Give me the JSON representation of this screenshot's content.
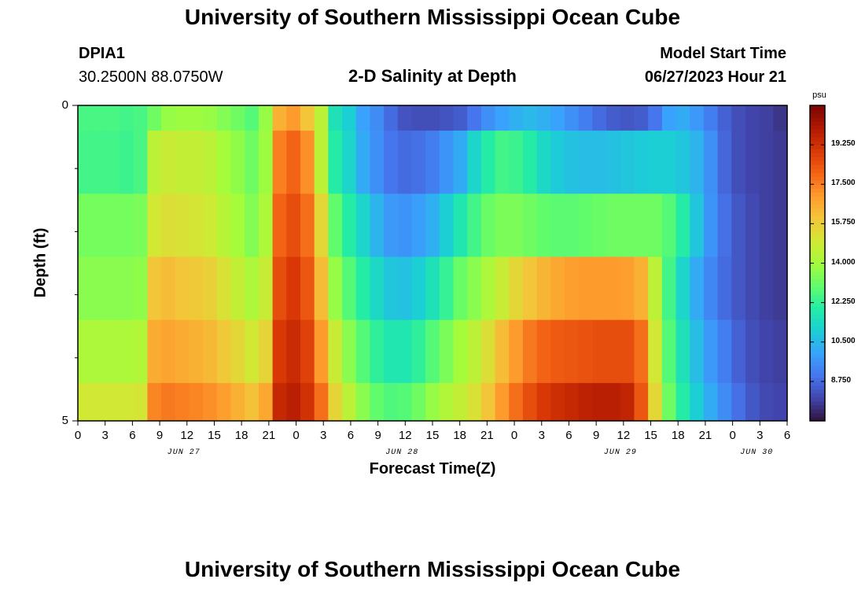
{
  "header": {
    "title": "University of Southern Mississippi Ocean Cube",
    "station_id": "DPIA1",
    "station_coords": "30.2500N  88.0750W",
    "chart_title": "2-D Salinity at Depth",
    "model_start_label": "Model Start Time",
    "model_start_value": "06/27/2023 Hour 21"
  },
  "footer": {
    "title": "University of Southern Mississippi Ocean Cube"
  },
  "chart_data": {
    "type": "heatmap",
    "title": "2-D Salinity at Depth",
    "xlabel": "Forecast Time(Z)",
    "ylabel": "Depth (ft)",
    "ylim": [
      0,
      5
    ],
    "y_tick_labels": [
      "0",
      "5"
    ],
    "x_tick_labels": [
      "0",
      "3",
      "6",
      "9",
      "12",
      "15",
      "18",
      "21",
      "0",
      "3",
      "6",
      "9",
      "12",
      "15",
      "18",
      "21",
      "0",
      "3",
      "6",
      "9",
      "12",
      "15",
      "18",
      "21",
      "0",
      "3",
      "6"
    ],
    "day_labels": [
      "JUN 27",
      "JUN 28",
      "JUN 29",
      "JUN 30"
    ],
    "x_hours": [
      0,
      3,
      6,
      9,
      12,
      15,
      18,
      21,
      24,
      27,
      30,
      33,
      36,
      39,
      42,
      45,
      48,
      51,
      54,
      57,
      60,
      63,
      66,
      69,
      72,
      75,
      78
    ],
    "depth_bins_ft": [
      "0.0-0.4",
      "0.4-1.4",
      "1.4-2.4",
      "2.4-3.4",
      "3.4-4.4",
      "4.4-5.0"
    ],
    "values": [
      [
        12.6,
        12.6,
        12.6,
        12.5,
        12.6,
        13.2,
        13.8,
        13.9,
        13.9,
        13.8,
        13.5,
        13.2,
        12.8,
        13.8,
        16.5,
        17.0,
        16.0,
        14.5,
        11.6,
        11.0,
        10.0,
        9.5,
        8.8,
        8.3,
        8.2,
        8.2,
        8.3,
        8.5,
        9.0,
        9.6,
        10.0,
        10.3,
        10.5,
        10.3,
        10.0,
        9.6,
        9.2,
        8.8,
        8.5,
        8.4,
        8.5,
        9.0,
        10.0,
        10.2,
        9.8,
        9.2,
        8.6,
        8.2,
        8.0,
        7.9,
        7.7
      ],
      [
        12.5,
        12.5,
        12.5,
        12.4,
        12.6,
        14.5,
        14.8,
        14.7,
        14.7,
        14.5,
        14.0,
        13.7,
        13.2,
        13.9,
        17.5,
        18.0,
        17.2,
        14.5,
        12.0,
        11.2,
        10.2,
        9.6,
        9.0,
        8.8,
        8.9,
        9.2,
        9.7,
        10.2,
        11.2,
        12.0,
        12.5,
        12.4,
        12.0,
        11.3,
        10.9,
        10.7,
        10.6,
        10.6,
        10.7,
        10.8,
        10.9,
        11.0,
        11.0,
        10.8,
        10.4,
        9.6,
        8.7,
        8.2,
        8.0,
        7.9,
        7.8
      ],
      [
        13.3,
        13.3,
        13.3,
        13.3,
        13.4,
        15.0,
        15.3,
        15.2,
        15.1,
        14.9,
        14.4,
        14.0,
        13.5,
        14.2,
        18.0,
        18.5,
        17.8,
        15.5,
        13.0,
        12.0,
        11.2,
        10.4,
        9.8,
        9.7,
        9.9,
        10.3,
        11.0,
        11.8,
        12.5,
        13.1,
        13.4,
        13.4,
        13.2,
        13.0,
        12.9,
        12.9,
        13.0,
        13.1,
        13.2,
        13.2,
        13.2,
        13.2,
        12.8,
        12.0,
        10.8,
        9.7,
        8.9,
        8.4,
        8.1,
        7.9,
        7.8
      ],
      [
        13.6,
        13.6,
        13.6,
        13.6,
        13.7,
        16.0,
        16.2,
        16.0,
        15.9,
        15.7,
        15.2,
        14.7,
        14.2,
        14.8,
        18.5,
        19.0,
        18.3,
        16.2,
        13.8,
        12.8,
        12.0,
        11.3,
        10.8,
        10.7,
        11.0,
        11.6,
        12.3,
        13.1,
        13.6,
        14.2,
        14.8,
        15.5,
        16.0,
        16.4,
        16.7,
        16.9,
        17.0,
        17.0,
        17.0,
        16.9,
        16.5,
        14.5,
        12.5,
        11.2,
        10.2,
        9.4,
        8.8,
        8.4,
        8.1,
        7.9,
        7.8
      ],
      [
        14.2,
        14.2,
        14.2,
        14.2,
        14.3,
        16.6,
        16.8,
        16.6,
        16.5,
        16.3,
        15.9,
        15.5,
        15.0,
        15.6,
        19.0,
        19.4,
        18.8,
        17.0,
        14.8,
        13.6,
        12.8,
        12.2,
        11.8,
        11.8,
        12.2,
        12.8,
        13.4,
        14.0,
        14.5,
        15.3,
        16.2,
        17.0,
        17.6,
        18.0,
        18.2,
        18.3,
        18.4,
        18.5,
        18.5,
        18.5,
        17.8,
        15.0,
        12.8,
        11.6,
        10.6,
        9.8,
        9.2,
        8.6,
        8.2,
        8.0,
        7.9
      ],
      [
        15.0,
        15.0,
        15.0,
        15.0,
        15.1,
        17.4,
        17.6,
        17.5,
        17.4,
        17.2,
        16.9,
        16.5,
        16.1,
        16.7,
        19.5,
        19.8,
        19.2,
        17.8,
        15.6,
        14.5,
        13.6,
        13.0,
        12.7,
        12.8,
        13.2,
        13.8,
        14.3,
        14.7,
        15.2,
        16.0,
        17.0,
        17.8,
        18.5,
        19.0,
        19.3,
        19.5,
        19.7,
        19.8,
        19.8,
        19.6,
        18.3,
        15.5,
        13.2,
        12.0,
        11.0,
        10.2,
        9.5,
        8.9,
        8.4,
        8.1,
        8.0
      ]
    ],
    "colorbar": {
      "unit": "psu",
      "ticks": [
        "19.250",
        "17.500",
        "15.750",
        "14.000",
        "12.250",
        "10.500",
        "8.750"
      ],
      "tick_values": [
        19.25,
        17.5,
        15.75,
        14.0,
        12.25,
        10.5,
        8.75
      ],
      "range": [
        7.0,
        21.0
      ]
    },
    "colors": [
      "#30123b",
      "#4145ab",
      "#4675ed",
      "#39a2fc",
      "#1bcfd4",
      "#24eca6",
      "#61fc6c",
      "#a4fc3b",
      "#d1e834",
      "#f3c63a",
      "#fe9b2d",
      "#f36315",
      "#d93806",
      "#b11901",
      "#7a0402"
    ]
  }
}
